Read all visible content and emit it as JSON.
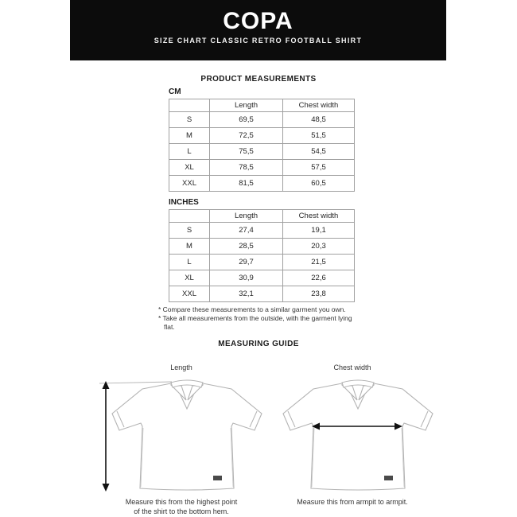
{
  "header": {
    "logo": "COPA",
    "subtitle": "SIZE CHART CLASSIC RETRO FOOTBALL SHIRT"
  },
  "product_measurements": {
    "title": "PRODUCT MEASUREMENTS",
    "cm_table": {
      "label": "CM",
      "headers": [
        "",
        "Length",
        "Chest width"
      ],
      "rows": [
        [
          "S",
          "69,5",
          "48,5"
        ],
        [
          "M",
          "72,5",
          "51,5"
        ],
        [
          "L",
          "75,5",
          "54,5"
        ],
        [
          "XL",
          "78,5",
          "57,5"
        ],
        [
          "XXL",
          "81,5",
          "60,5"
        ]
      ]
    },
    "inches_table": {
      "label": "INCHES",
      "headers": [
        "",
        "Length",
        "Chest width"
      ],
      "rows": [
        [
          "S",
          "27,4",
          "19,1"
        ],
        [
          "M",
          "28,5",
          "20,3"
        ],
        [
          "L",
          "29,7",
          "21,5"
        ],
        [
          "XL",
          "30,9",
          "22,6"
        ],
        [
          "XXL",
          "32,1",
          "23,8"
        ]
      ]
    },
    "notes": [
      "* Compare these measurements to a similar garment you own.",
      "* Take all measurements from the outside, with the garment lying flat."
    ]
  },
  "measuring_guide": {
    "title": "MEASURING GUIDE",
    "length_figure": {
      "label": "Length",
      "caption_lines": [
        "Measure this from the highest point",
        "of the shirt to the bottom hem."
      ]
    },
    "chest_figure": {
      "label": "Chest width",
      "caption_lines": [
        "Measure this from armpit to armpit."
      ]
    }
  },
  "colors": {
    "header_bg": "#0c0c0c",
    "body_text": "#222222",
    "table_border": "#a0a0a0",
    "shirt_outline": "#b3b3b3",
    "arrow": "#111111"
  }
}
